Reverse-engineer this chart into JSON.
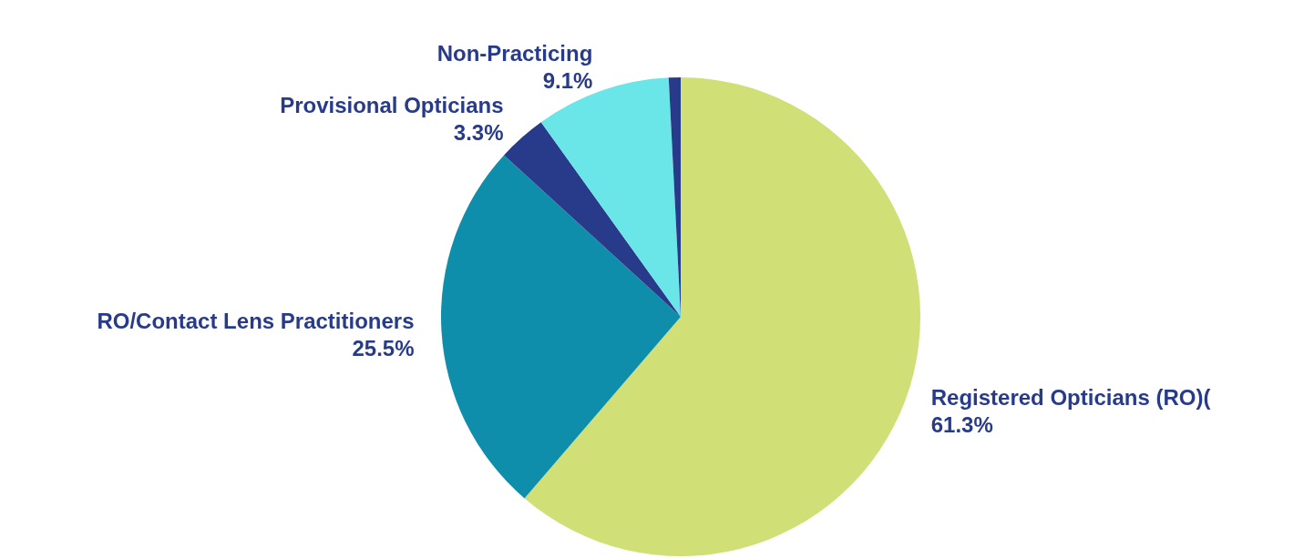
{
  "chart_data": {
    "type": "pie",
    "categories": [
      "Registered Opticians (RO)(",
      "RO/Contact Lens Practitioners",
      "Provisional Opticians",
      "Non-Practicing",
      null
    ],
    "values": [
      61.3,
      25.5,
      3.3,
      9.1,
      0.8
    ],
    "colors": [
      "#d0e077",
      "#0e8eab",
      "#283b8a",
      "#6ae5e8",
      "#283b8a"
    ],
    "value_labels": [
      "61.3%",
      "25.5%",
      "3.3%",
      "9.1%",
      null
    ],
    "legend": false
  }
}
